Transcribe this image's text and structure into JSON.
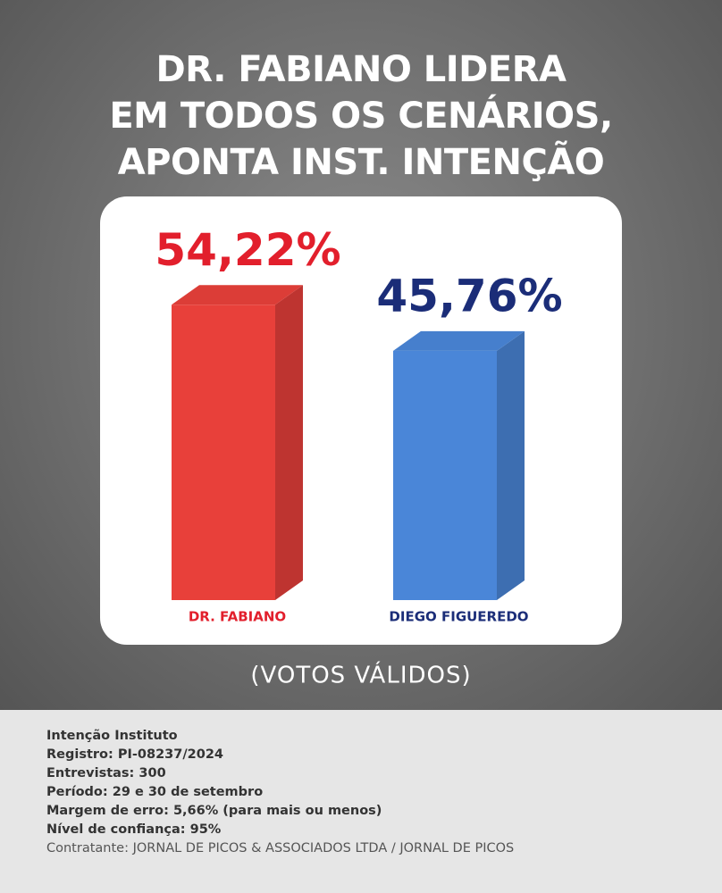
{
  "chart_data": {
    "type": "bar",
    "title": "DR. FABIANO LIDERA\nEM TODOS OS CENÁRIOS,\nAPONTA INST. INTENÇÃO",
    "categories": [
      "DR. FABIANO",
      "DIEGO FIGUEREDO"
    ],
    "values": [
      54.22,
      45.76
    ],
    "value_labels": [
      "54,22%",
      "45,76%"
    ],
    "colors": [
      "#e8403a",
      "#4a86d8"
    ],
    "label_colors": [
      "#e21f2c",
      "#1b2d78"
    ],
    "note": "(VOTOS VÁLIDOS)"
  },
  "footer": {
    "lines": [
      "Intenção Instituto",
      "Registro: PI-08237/2024",
      "Entrevistas: 300",
      "Período: 29 e 30 de setembro",
      "Margem de erro: 5,66% (para mais ou menos)",
      "Nível de confiança: 95%",
      "Contratante: JORNAL DE PICOS & ASSOCIADOS LTDA / JORNAL DE PICOS"
    ]
  }
}
